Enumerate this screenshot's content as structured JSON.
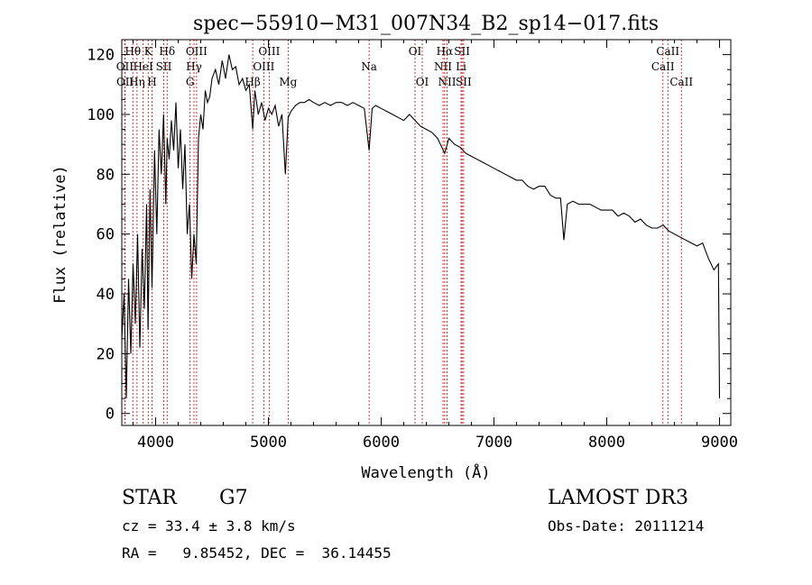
{
  "chart_data": {
    "type": "line",
    "title": "spec−55910−M31_007N34_B2_sp14−017.fits",
    "xlabel": "Wavelength (Å)",
    "ylabel": "Flux (relative)",
    "xlim": [
      3700,
      9100
    ],
    "ylim": [
      -4,
      125
    ],
    "x_ticks": [
      4000,
      5000,
      6000,
      7000,
      8000,
      9000
    ],
    "y_ticks": [
      0,
      20,
      40,
      60,
      80,
      100,
      120
    ],
    "grid": false,
    "series": [
      {
        "x": [
          3700,
          3720,
          3740,
          3760,
          3780,
          3800,
          3820,
          3840,
          3860,
          3880,
          3900,
          3920,
          3933,
          3950,
          3968,
          3990,
          4010,
          4030,
          4050,
          4070,
          4090,
          4102,
          4120,
          4140,
          4160,
          4180,
          4200,
          4220,
          4240,
          4260,
          4280,
          4300,
          4320,
          4340,
          4360,
          4380,
          4400,
          4420,
          4440,
          4460,
          4480,
          4500,
          4530,
          4560,
          4590,
          4620,
          4650,
          4680,
          4710,
          4740,
          4770,
          4800,
          4830,
          4861,
          4880,
          4910,
          4940,
          4970,
          5000,
          5030,
          5060,
          5090,
          5120,
          5150,
          5175,
          5200,
          5240,
          5280,
          5320,
          5360,
          5400,
          5450,
          5500,
          5550,
          5600,
          5650,
          5700,
          5750,
          5800,
          5850,
          5893,
          5920,
          5950,
          6000,
          6050,
          6100,
          6150,
          6200,
          6250,
          6300,
          6350,
          6400,
          6450,
          6500,
          6563,
          6600,
          6650,
          6700,
          6750,
          6800,
          6850,
          6900,
          6950,
          7000,
          7050,
          7100,
          7150,
          7200,
          7250,
          7300,
          7350,
          7400,
          7450,
          7500,
          7550,
          7590,
          7620,
          7650,
          7700,
          7750,
          7800,
          7850,
          7900,
          7950,
          8000,
          8050,
          8100,
          8150,
          8200,
          8250,
          8300,
          8350,
          8400,
          8450,
          8500,
          8550,
          8600,
          8650,
          8700,
          8750,
          8800,
          8850,
          8900,
          8950,
          8990,
          9000
        ],
        "y": [
          25,
          40,
          5,
          45,
          20,
          50,
          30,
          60,
          22,
          55,
          35,
          70,
          28,
          75,
          42,
          88,
          60,
          95,
          80,
          100,
          70,
          92,
          85,
          98,
          88,
          104,
          82,
          95,
          75,
          90,
          60,
          70,
          45,
          60,
          50,
          92,
          100,
          95,
          108,
          104,
          106,
          112,
          115,
          110,
          118,
          112,
          120,
          115,
          116,
          110,
          112,
          108,
          110,
          95,
          108,
          100,
          104,
          98,
          102,
          100,
          103,
          96,
          100,
          80,
          99,
          101,
          103,
          104,
          104,
          105,
          104,
          103,
          104,
          103,
          104,
          104,
          103,
          104,
          103,
          102,
          88,
          102,
          103,
          102,
          101,
          100,
          99,
          98,
          100,
          98,
          96,
          95,
          94,
          92,
          87,
          92,
          90,
          89,
          87,
          86,
          85,
          84,
          83,
          82,
          81,
          80,
          79,
          78,
          78,
          76,
          75,
          76,
          76,
          73,
          72,
          72,
          58,
          70,
          71,
          70,
          70,
          70,
          69,
          68,
          68,
          68,
          66,
          67,
          66,
          64,
          65,
          63,
          62,
          62,
          63,
          61,
          60,
          59,
          58,
          57,
          56,
          57,
          52,
          48,
          50,
          5
        ]
      }
    ],
    "lines": [
      {
        "name": "Hθ",
        "wl": 3798,
        "row": 0
      },
      {
        "name": "OII",
        "wl": 3727,
        "row": 1
      },
      {
        "name": "OII",
        "wl": 3729,
        "row": 2
      },
      {
        "name": "K",
        "wl": 3934,
        "row": 0
      },
      {
        "name": "HeI",
        "wl": 3889,
        "row": 1
      },
      {
        "name": "Hη",
        "wl": 3835,
        "row": 2
      },
      {
        "name": "Hδ",
        "wl": 4102,
        "row": 0
      },
      {
        "name": "SII",
        "wl": 4072,
        "row": 1
      },
      {
        "name": "H",
        "wl": 3968,
        "row": 2
      },
      {
        "name": "OIII",
        "wl": 4363,
        "row": 0
      },
      {
        "name": "Hγ",
        "wl": 4340,
        "row": 1
      },
      {
        "name": "G",
        "wl": 4305,
        "row": 2
      },
      {
        "name": "OIII",
        "wl": 5007,
        "row": 0
      },
      {
        "name": "OIII",
        "wl": 4959,
        "row": 1
      },
      {
        "name": "Hβ",
        "wl": 4861,
        "row": 2
      },
      {
        "name": "Mg",
        "wl": 5175,
        "row": 2
      },
      {
        "name": "Na",
        "wl": 5893,
        "row": 1
      },
      {
        "name": "OI",
        "wl": 6300,
        "row": 0
      },
      {
        "name": "OI",
        "wl": 6364,
        "row": 2
      },
      {
        "name": "Hα",
        "wl": 6563,
        "row": 0
      },
      {
        "name": "NII",
        "wl": 6548,
        "row": 1
      },
      {
        "name": "NII",
        "wl": 6584,
        "row": 2
      },
      {
        "name": "SII",
        "wl": 6717,
        "row": 0
      },
      {
        "name": "Li",
        "wl": 6708,
        "row": 1
      },
      {
        "name": "SII",
        "wl": 6731,
        "row": 2
      },
      {
        "name": "CaII",
        "wl": 8542,
        "row": 0
      },
      {
        "name": "CaII",
        "wl": 8498,
        "row": 1
      },
      {
        "name": "CaII",
        "wl": 8662,
        "row": 2
      }
    ]
  },
  "footer": {
    "object_class": "STAR",
    "subclass": "G7",
    "survey": "LAMOST DR3",
    "cz": "cz = 33.4 ± 3.8 km/s",
    "obs_date": "Obs-Date: 20111214",
    "coords": "RA =   9.85452, DEC =  36.14455"
  },
  "colors": {
    "spectrum": "#000000",
    "line_marker": "#cc2222",
    "axis": "#000000"
  }
}
